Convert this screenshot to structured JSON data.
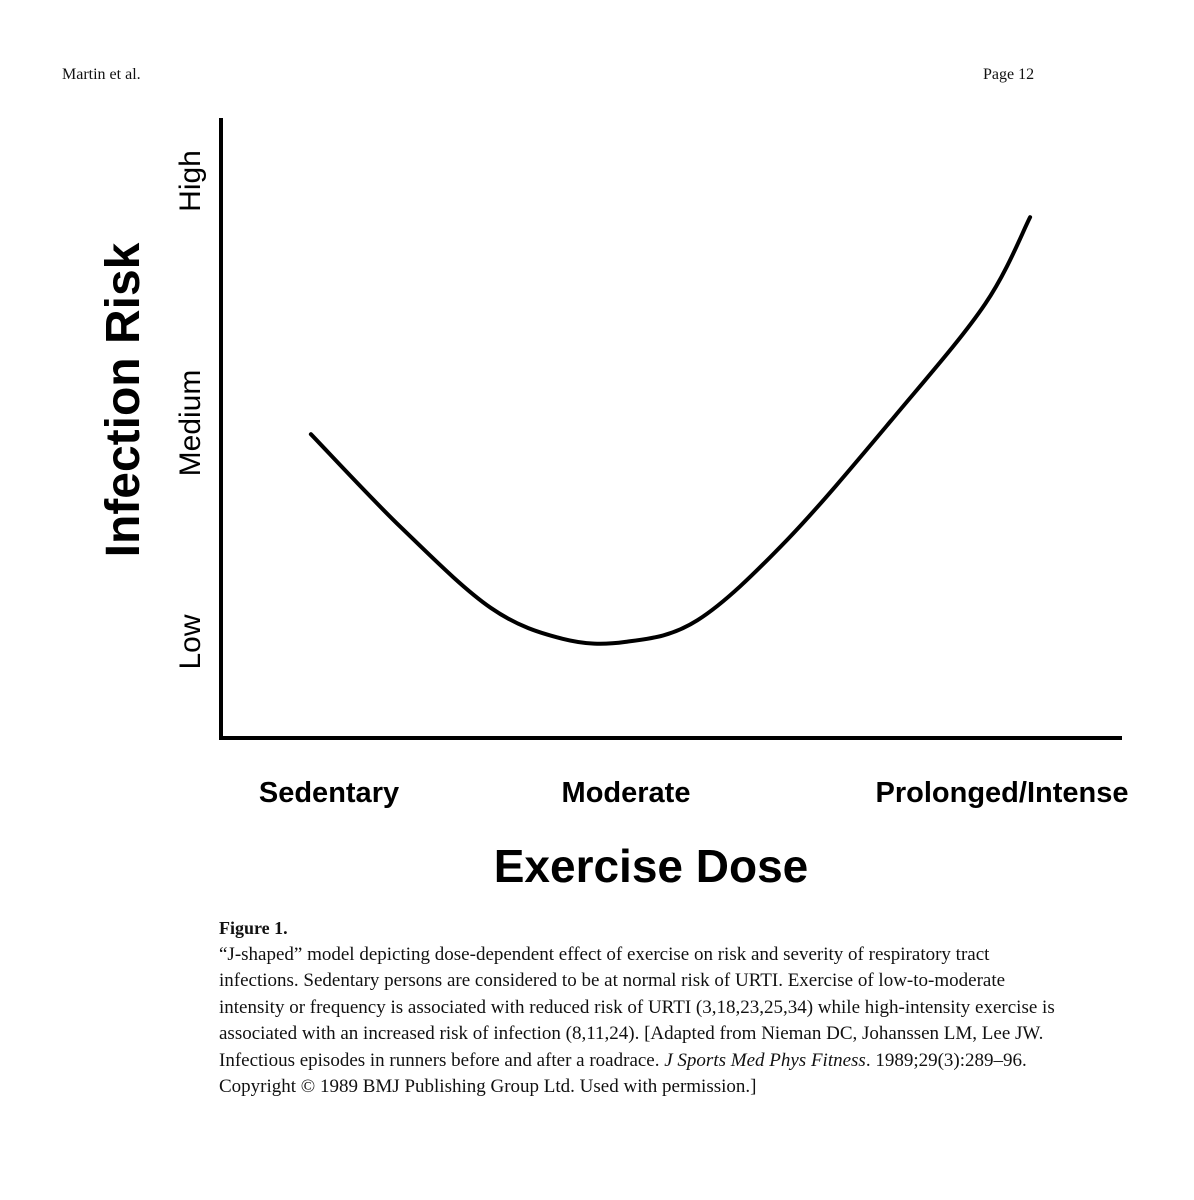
{
  "header": {
    "author": "Martin et al.",
    "page": "Page 12"
  },
  "chart_data": {
    "type": "line",
    "xlabel": "Exercise Dose",
    "ylabel": "Infection Risk",
    "x_ticks": [
      "Sedentary",
      "Moderate",
      "Prolonged/Intense"
    ],
    "y_ticks": [
      "Low",
      "Medium",
      "High"
    ],
    "xlim": [
      0,
      10
    ],
    "ylim": [
      0,
      10
    ],
    "grid": false,
    "series": [
      {
        "points": [
          {
            "x": 1.0,
            "y": 4.9
          },
          {
            "x": 2.0,
            "y": 3.4
          },
          {
            "x": 3.0,
            "y": 2.1
          },
          {
            "x": 3.8,
            "y": 1.6
          },
          {
            "x": 4.5,
            "y": 1.55
          },
          {
            "x": 5.3,
            "y": 1.9
          },
          {
            "x": 6.3,
            "y": 3.2
          },
          {
            "x": 7.5,
            "y": 5.2
          },
          {
            "x": 8.5,
            "y": 7.0
          },
          {
            "x": 9.0,
            "y": 8.4
          }
        ]
      }
    ]
  },
  "caption": {
    "label": "Figure 1.",
    "text_before_italic": "“J-shaped” model depicting dose-dependent effect of exercise on risk and severity of respiratory tract infections. Sedentary persons are considered to be at normal risk of URTI. Exercise of low-to-moderate intensity or frequency is associated with reduced risk of URTI (3,18,23,25,34) while high-intensity exercise is associated with an increased risk of infection (8,11,24). [Adapted from Nieman DC, Johanssen LM, Lee JW. Infectious episodes in runners before and after a roadrace. ",
    "italic": "J Sports Med Phys Fitness",
    "text_after_italic": ". 1989;29(3):289–96. Copyright © 1989 BMJ Publishing Group Ltd. Used with permission.]"
  }
}
